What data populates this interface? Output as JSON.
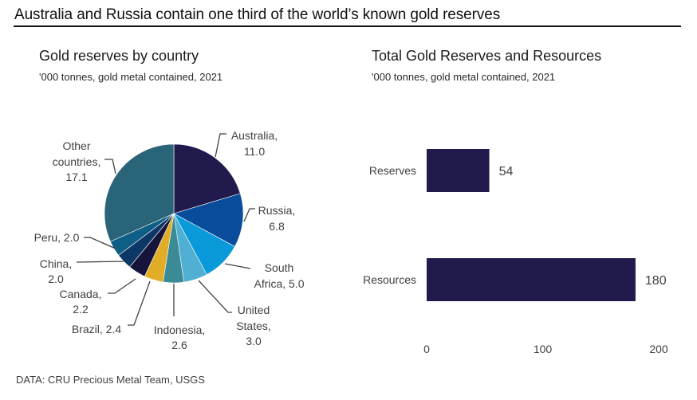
{
  "header": {
    "title": "Australia and Russia contain one third of the world’s known gold reserves"
  },
  "footer": {
    "source": "DATA: CRU Precious Metal Team, USGS"
  },
  "chart_data": [
    {
      "type": "pie",
      "title": "Gold reserves by country",
      "subtitle": "'000 tonnes, gold metal contained, 2021",
      "start": "12 o'clock, clockwise",
      "slices": [
        {
          "label": "Australia",
          "value": 11.0,
          "label_lines": [
            "Australia,",
            "11.0"
          ],
          "color": "#211a4d"
        },
        {
          "label": "Russia",
          "value": 6.8,
          "label_lines": [
            "Russia,",
            "6.8"
          ],
          "color": "#0a4c9c"
        },
        {
          "label": "South Africa",
          "value": 5.0,
          "label_lines": [
            "South",
            "Africa, 5.0"
          ],
          "color": "#0b9ad9"
        },
        {
          "label": "United States",
          "value": 3.0,
          "label_lines": [
            "United",
            "States,",
            "3.0"
          ],
          "color": "#4fb0d3"
        },
        {
          "label": "Indonesia",
          "value": 2.6,
          "label_lines": [
            "Indonesia,",
            "2.6"
          ],
          "color": "#3a8b96"
        },
        {
          "label": "Brazil",
          "value": 2.4,
          "label_lines": [
            "Brazil, 2.4"
          ],
          "color": "#e2ad26"
        },
        {
          "label": "Canada",
          "value": 2.2,
          "label_lines": [
            "Canada,",
            "2.2"
          ],
          "color": "#17143b"
        },
        {
          "label": "China",
          "value": 2.0,
          "label_lines": [
            "China,",
            "2.0"
          ],
          "color": "#0d3766"
        },
        {
          "label": "Peru",
          "value": 2.0,
          "label_lines": [
            "Peru, 2.0"
          ],
          "color": "#0f5e85"
        },
        {
          "label": "Other countries",
          "value": 17.1,
          "label_lines": [
            "Other",
            "countries,",
            "17.1"
          ],
          "color": "#2a6478"
        }
      ]
    },
    {
      "type": "bar",
      "orientation": "horizontal",
      "title": "Total Gold Reserves and Resources",
      "subtitle": "'000 tonnes, gold metal contained, 2021",
      "categories": [
        "Reserves",
        "Resources"
      ],
      "values": [
        54,
        180
      ],
      "data_labels": [
        "54",
        "180"
      ],
      "xlim": [
        0,
        200
      ],
      "xticks": [
        0,
        100,
        200
      ],
      "grid": false,
      "bar_color": "#211a4d"
    }
  ]
}
